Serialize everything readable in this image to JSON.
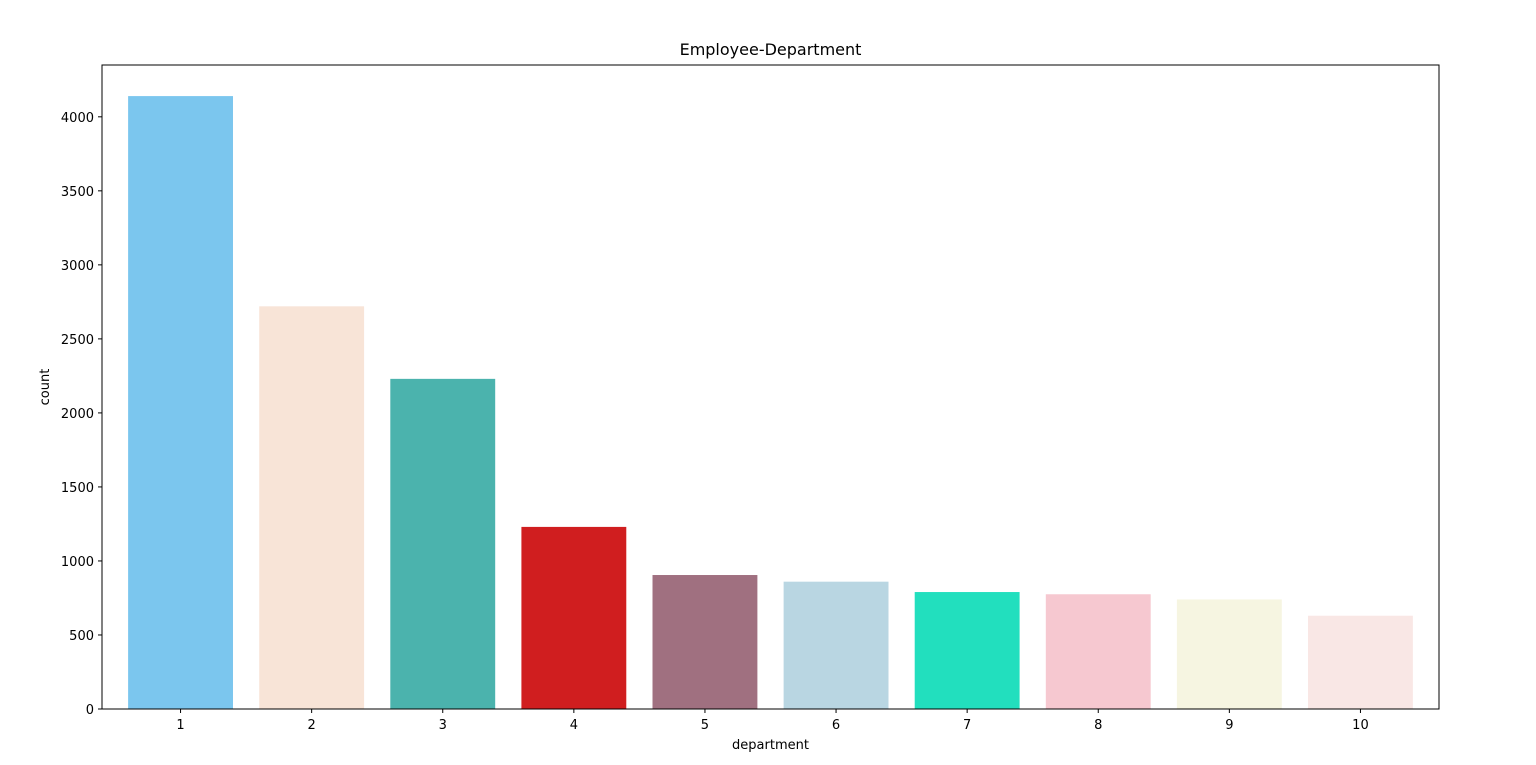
{
  "chart_data": {
    "type": "bar",
    "title": "Employee-Department",
    "xlabel": "department",
    "ylabel": "count",
    "categories": [
      "1",
      "2",
      "3",
      "4",
      "5",
      "6",
      "7",
      "8",
      "9",
      "10"
    ],
    "values": [
      4140,
      2720,
      2230,
      1230,
      905,
      860,
      790,
      775,
      740,
      630
    ],
    "colors": [
      "#7bc6ee",
      "#f8e4d7",
      "#4bb3ad",
      "#d01e1f",
      "#a07080",
      "#b9d6e2",
      "#22dfbe",
      "#f6c8d0",
      "#f6f5e1",
      "#f9e7e5"
    ],
    "ylim": [
      0,
      4350
    ],
    "yticks": [
      0,
      500,
      1000,
      1500,
      2000,
      2500,
      3000,
      3500,
      4000
    ],
    "grid": false,
    "legend": "none"
  }
}
